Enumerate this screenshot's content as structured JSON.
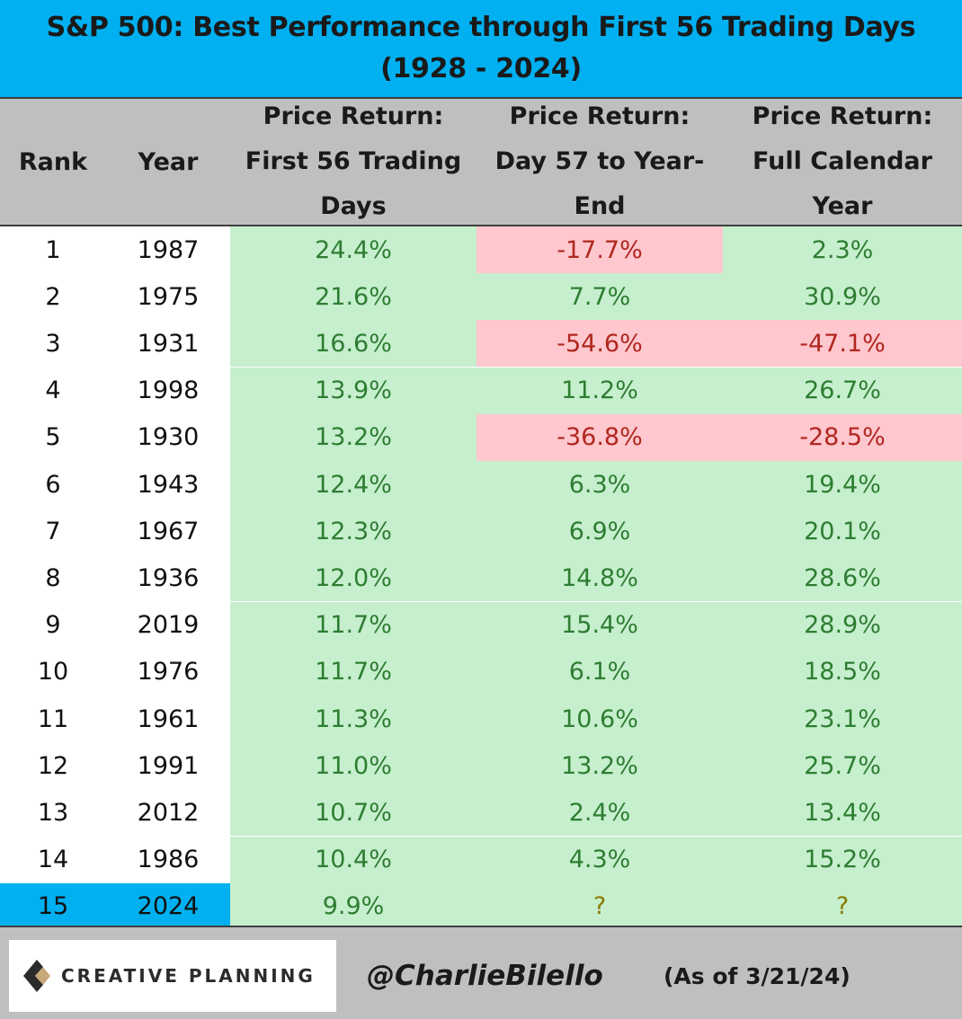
{
  "title_line1": "S&P 500: Best Performance through First 56 Trading Days",
  "title_line2": "(1928 - 2024)",
  "headers": {
    "rank": "Rank",
    "year": "Year",
    "col_a": [
      "Price Return:",
      "First 56 Trading",
      "Days"
    ],
    "col_b": [
      "Price Return:",
      "Day 57 to Year-",
      "End"
    ],
    "col_c": [
      "Price Return:",
      "Full Calendar",
      "Year"
    ]
  },
  "colors": {
    "title_bg": "#00b0f0",
    "header_bg": "#bfbfbf",
    "positive_fill": "#c6efce",
    "positive_text": "#2e7d32",
    "negative_fill": "#ffc7ce",
    "negative_text": "#b0271f",
    "highlight": "#00b0f0"
  },
  "chart_data": {
    "type": "table",
    "title": "S&P 500: Best Performance through First 56 Trading Days (1928 - 2024)",
    "columns": [
      "Rank",
      "Year",
      "Price Return: First 56 Trading Days",
      "Price Return: Day 57 to Year-End",
      "Price Return: Full Calendar Year"
    ],
    "rows": [
      {
        "rank": "1",
        "year": "1987",
        "first56": "24.4%",
        "day57": "-17.7%",
        "full": "2.3%"
      },
      {
        "rank": "2",
        "year": "1975",
        "first56": "21.6%",
        "day57": "7.7%",
        "full": "30.9%"
      },
      {
        "rank": "3",
        "year": "1931",
        "first56": "16.6%",
        "day57": "-54.6%",
        "full": "-47.1%"
      },
      {
        "rank": "4",
        "year": "1998",
        "first56": "13.9%",
        "day57": "11.2%",
        "full": "26.7%"
      },
      {
        "rank": "5",
        "year": "1930",
        "first56": "13.2%",
        "day57": "-36.8%",
        "full": "-28.5%"
      },
      {
        "rank": "6",
        "year": "1943",
        "first56": "12.4%",
        "day57": "6.3%",
        "full": "19.4%"
      },
      {
        "rank": "7",
        "year": "1967",
        "first56": "12.3%",
        "day57": "6.9%",
        "full": "20.1%"
      },
      {
        "rank": "8",
        "year": "1936",
        "first56": "12.0%",
        "day57": "14.8%",
        "full": "28.6%"
      },
      {
        "rank": "9",
        "year": "2019",
        "first56": "11.7%",
        "day57": "15.4%",
        "full": "28.9%"
      },
      {
        "rank": "10",
        "year": "1976",
        "first56": "11.7%",
        "day57": "6.1%",
        "full": "18.5%"
      },
      {
        "rank": "11",
        "year": "1961",
        "first56": "11.3%",
        "day57": "10.6%",
        "full": "23.1%"
      },
      {
        "rank": "12",
        "year": "1991",
        "first56": "11.0%",
        "day57": "13.2%",
        "full": "25.7%"
      },
      {
        "rank": "13",
        "year": "2012",
        "first56": "10.7%",
        "day57": "2.4%",
        "full": "13.4%"
      },
      {
        "rank": "14",
        "year": "1986",
        "first56": "10.4%",
        "day57": "4.3%",
        "full": "15.2%"
      },
      {
        "rank": "15",
        "year": "2024",
        "first56": "9.9%",
        "day57": "?",
        "full": "?"
      }
    ],
    "highlighted_rank": "15"
  },
  "footer": {
    "logo_text": "CREATIVE PLANNING",
    "logo_icon": "creative-planning-logo-mark",
    "handle": "@CharlieBilello",
    "as_of": "(As of 3/21/24)"
  }
}
